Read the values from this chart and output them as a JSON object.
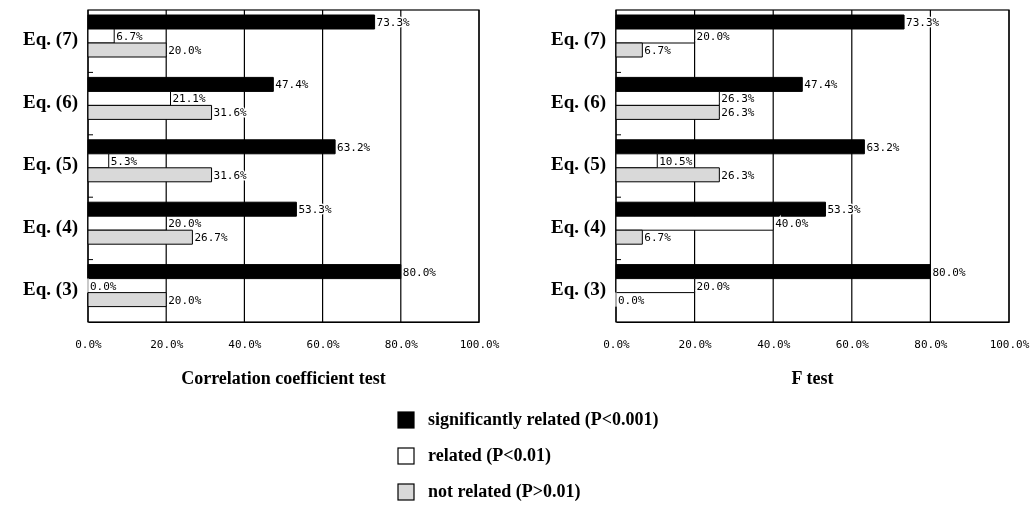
{
  "chart_data": [
    {
      "type": "bar",
      "orientation": "horizontal",
      "xlabel": "Correlation coefficient test",
      "categories": [
        "Eq. (7)",
        "Eq. (6)",
        "Eq. (5)",
        "Eq. (4)",
        "Eq. (3)"
      ],
      "series": [
        {
          "name": "significantly related (P<0.001)",
          "color": "#000000",
          "values": [
            73.3,
            47.4,
            63.2,
            53.3,
            80.0
          ],
          "value_labels": [
            "73.3%",
            "47.4%",
            "63.2%",
            "53.3%",
            "80.0%"
          ]
        },
        {
          "name": "related (P<0.01)",
          "color": "#ffffff",
          "values": [
            6.7,
            21.1,
            5.3,
            20.0,
            0.0
          ],
          "value_labels": [
            "6.7%",
            "21.1%",
            "5.3%",
            "20.0%",
            "0.0%"
          ]
        },
        {
          "name": "not related (P>0.01)",
          "color": "#d9d9d9",
          "values": [
            20.0,
            31.6,
            31.6,
            26.7,
            20.0
          ],
          "value_labels": [
            "20.0%",
            "31.6%",
            "31.6%",
            "26.7%",
            "20.0%"
          ]
        }
      ],
      "xlim": [
        0,
        100
      ],
      "xticks": [
        {
          "value": 0,
          "label": "0.0%"
        },
        {
          "value": 20,
          "label": "20.0%"
        },
        {
          "value": 40,
          "label": "40.0%"
        },
        {
          "value": 60,
          "label": "60.0%"
        },
        {
          "value": 80,
          "label": "80.0%"
        },
        {
          "value": 100,
          "label": "100.0%"
        }
      ],
      "grid": "x",
      "legend": "bottom"
    },
    {
      "type": "bar",
      "orientation": "horizontal",
      "xlabel": "F test",
      "categories": [
        "Eq. (7)",
        "Eq. (6)",
        "Eq. (5)",
        "Eq. (4)",
        "Eq. (3)"
      ],
      "series": [
        {
          "color": "#000000",
          "values": [
            73.3,
            47.4,
            63.2,
            53.3,
            80.0
          ],
          "value_labels": [
            "73.3%",
            "47.4%",
            "63.2%",
            "53.3%",
            "80.0%"
          ]
        },
        {
          "color": "#ffffff",
          "values": [
            20.0,
            26.3,
            10.5,
            40.0,
            20.0
          ],
          "value_labels": [
            "20.0%",
            "26.3%",
            "10.5%",
            "40.0%",
            "20.0%"
          ]
        },
        {
          "color": "#d9d9d9",
          "values": [
            6.7,
            26.3,
            26.3,
            6.7,
            0.0
          ],
          "value_labels": [
            "6.7%",
            "26.3%",
            "26.3%",
            "6.7%",
            "0.0%"
          ]
        }
      ],
      "xlim": [
        0,
        100
      ],
      "xticks": [
        {
          "value": 0,
          "label": "0.0%"
        },
        {
          "value": 20,
          "label": "20.0%"
        },
        {
          "value": 40,
          "label": "40.0%"
        },
        {
          "value": 60,
          "label": "60.0%"
        },
        {
          "value": 80,
          "label": "80.0%"
        },
        {
          "value": 100,
          "label": "100.0%"
        }
      ],
      "grid": "x"
    }
  ]
}
